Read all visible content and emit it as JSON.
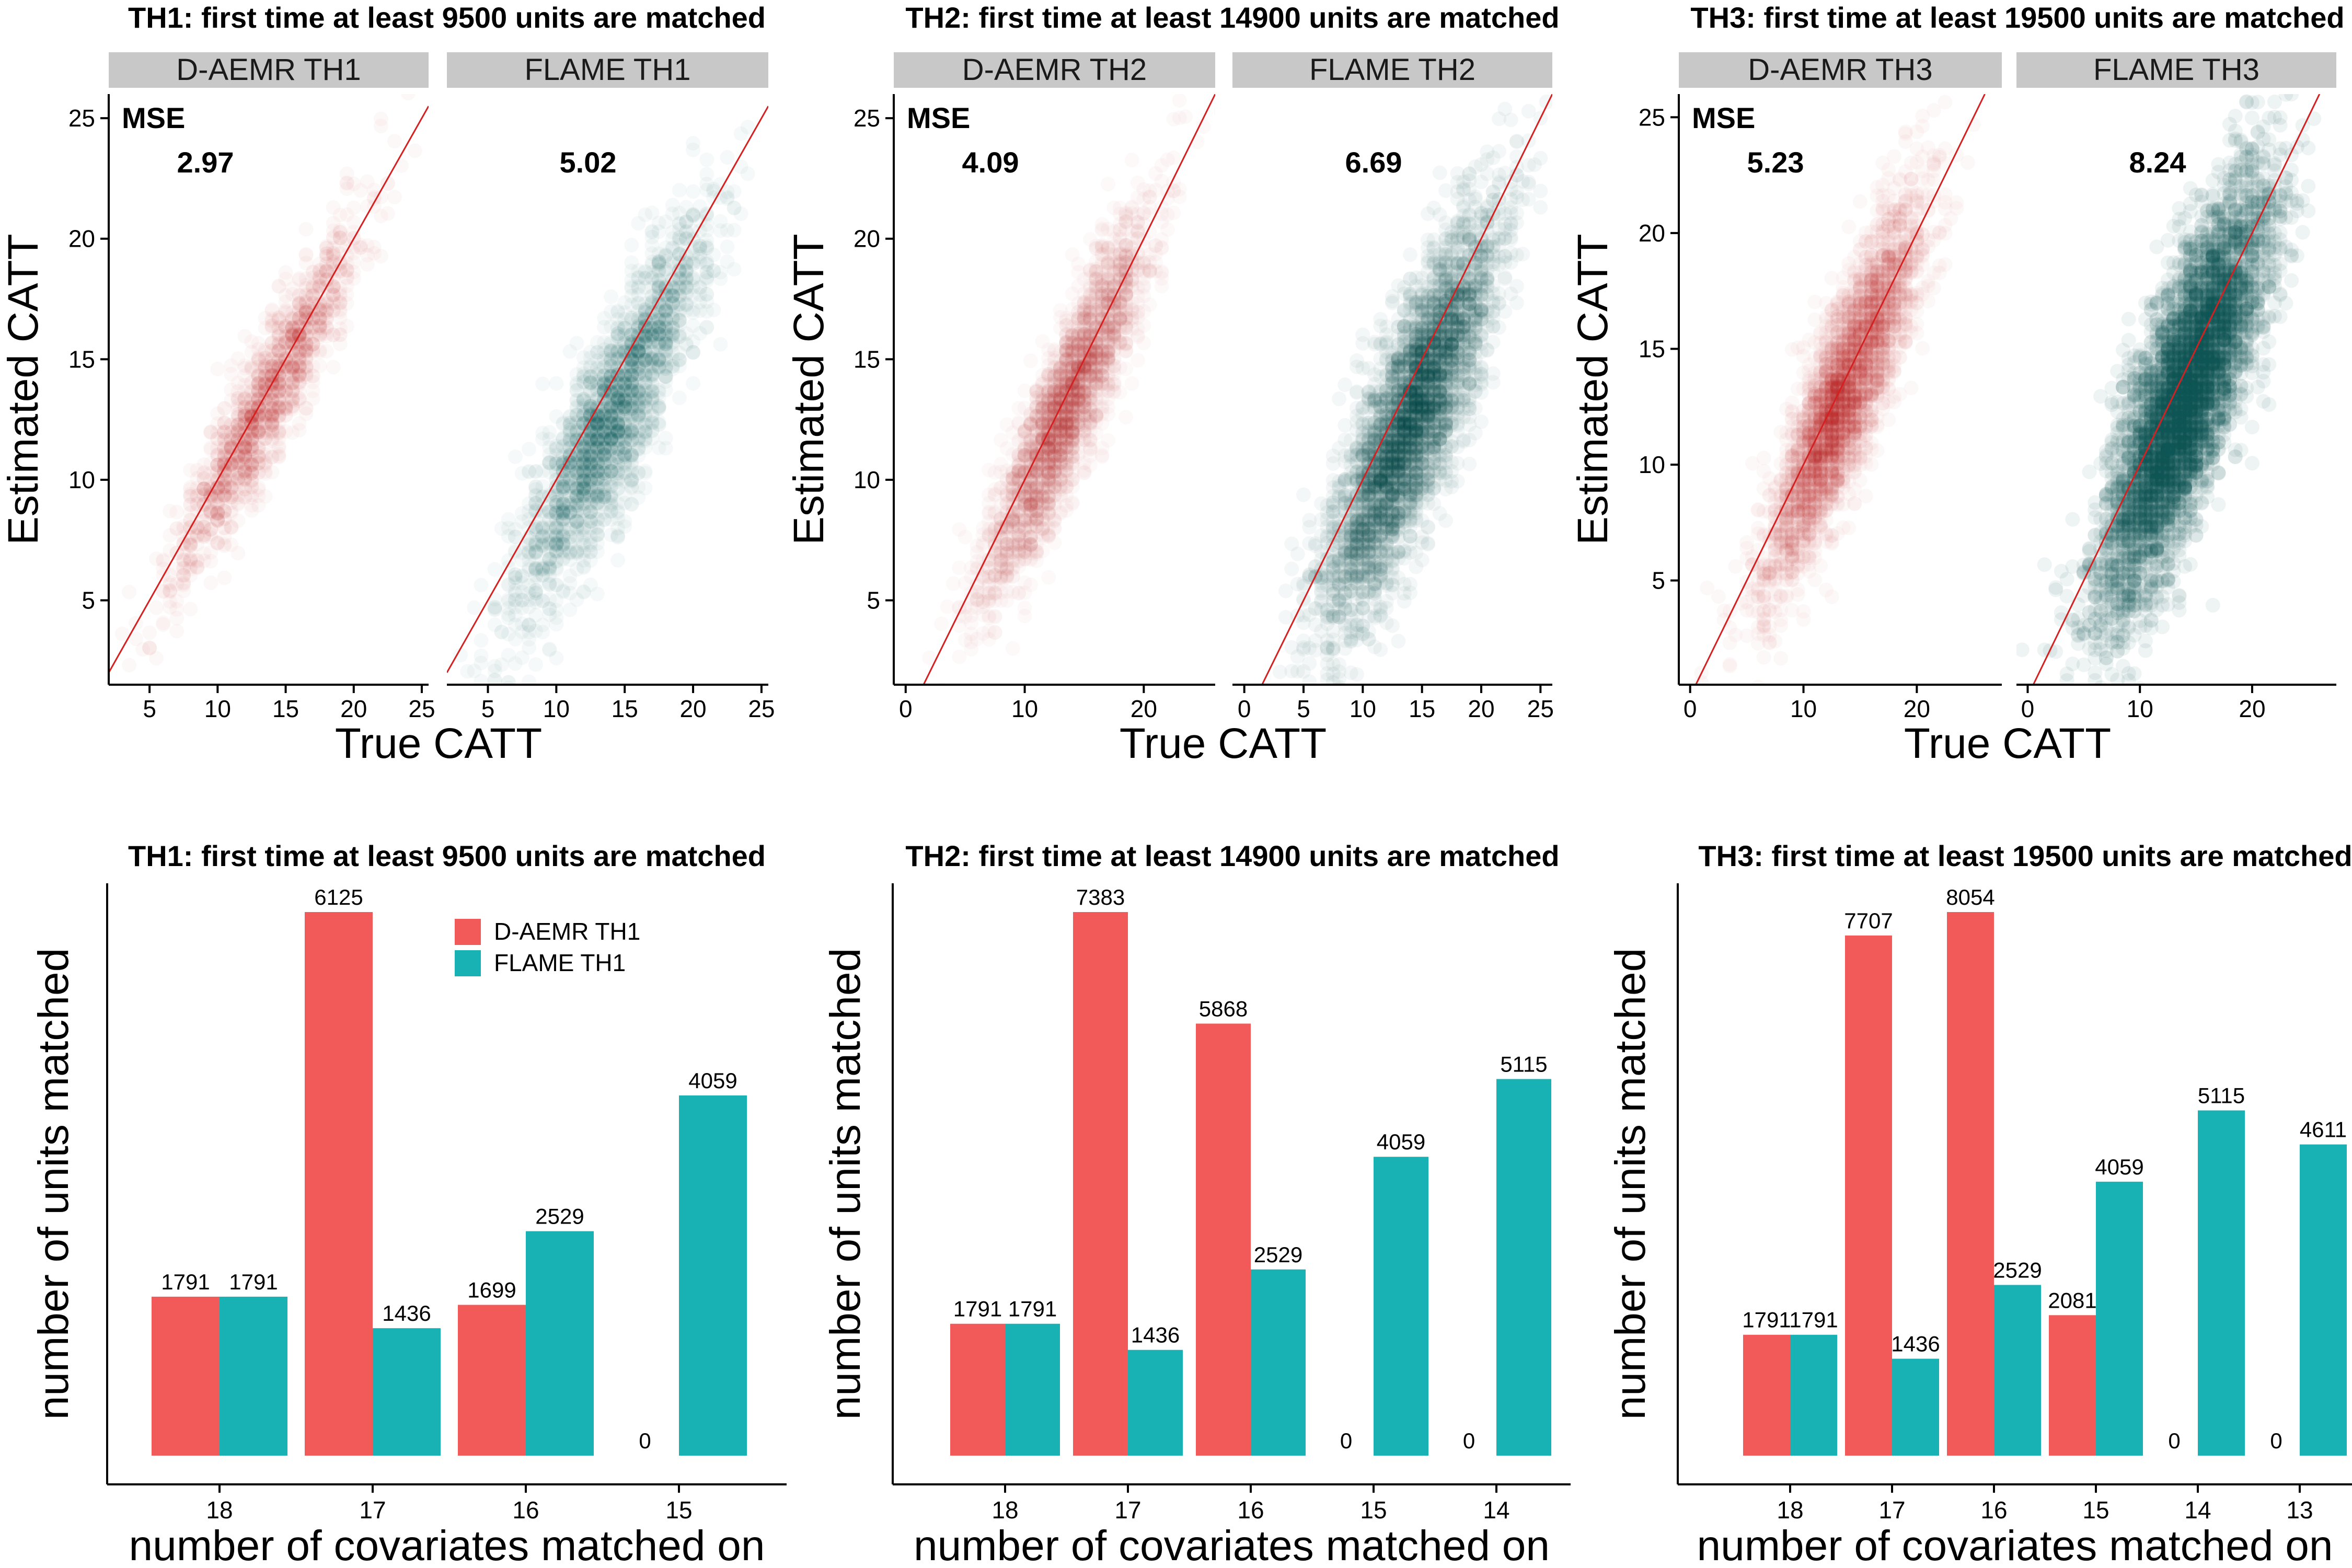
{
  "colors": {
    "daemr": "#F25A5A",
    "flame": "#18B2B5",
    "scatter_daemr": "#B0161C",
    "scatter_flame": "#0A4E4F",
    "identity_line": "#D42020",
    "strip_bg": "#C8C8C8",
    "axis": "#000000"
  },
  "labels": {
    "scatter_xlabel": "True CATT",
    "scatter_ylabel": "Estimated CATT",
    "mse_label": "MSE",
    "bar_xlabel": "number of covariates matched on",
    "bar_ylabel": "number of units matched"
  },
  "legend": {
    "placement": "top-right of first bar chart",
    "entries": [
      "D-AEMR TH1",
      "FLAME TH1"
    ]
  },
  "chart_data": [
    {
      "type": "scatter",
      "title": "TH1: first time at least 9500 units are matched",
      "xlabel": "True CATT",
      "ylabel": "Estimated CATT",
      "ylim": [
        1.5,
        26
      ],
      "yticks": [
        5,
        10,
        15,
        20,
        25
      ],
      "facets": [
        {
          "name": "D-AEMR TH1",
          "mse": "2.97",
          "method": "daemr",
          "xlim": [
            2,
            25.5
          ],
          "xticks": [
            5,
            10,
            15,
            20,
            25
          ],
          "cx": 13.5,
          "cy": 13.2,
          "sdx": 3.4,
          "sdy": 3.7,
          "rho": 0.93,
          "n": 1400,
          "alpha": 0.03
        },
        {
          "name": "FLAME TH1",
          "mse": "5.02",
          "method": "flame",
          "xlim": [
            2,
            25.5
          ],
          "xticks": [
            5,
            10,
            15,
            20,
            25
          ],
          "cx": 14.0,
          "cy": 12.5,
          "sdx": 3.4,
          "sdy": 3.9,
          "rho": 0.87,
          "n": 2200,
          "alpha": 0.035
        }
      ]
    },
    {
      "type": "scatter",
      "title": "TH2: first time at least 14900 units are matched",
      "xlabel": "True CATT",
      "ylabel": "Estimated CATT",
      "ylim": [
        1.5,
        26
      ],
      "yticks": [
        5,
        10,
        15,
        20,
        25
      ],
      "facets": [
        {
          "name": "D-AEMR TH2",
          "mse": "4.09",
          "method": "daemr",
          "xlim": [
            -1,
            26
          ],
          "xticks": [
            0,
            10,
            20
          ],
          "cx": 13.5,
          "cy": 13.0,
          "sdx": 3.4,
          "sdy": 3.9,
          "rho": 0.9,
          "n": 2400,
          "alpha": 0.028
        },
        {
          "name": "FLAME TH2",
          "mse": "6.69",
          "method": "flame",
          "xlim": [
            -1,
            26
          ],
          "xticks": [
            0,
            5,
            10,
            15,
            20,
            25
          ],
          "cx": 14.0,
          "cy": 12.5,
          "sdx": 3.6,
          "sdy": 4.2,
          "rho": 0.83,
          "n": 3600,
          "alpha": 0.045
        }
      ]
    },
    {
      "type": "scatter",
      "title": "TH3: first time at least 19500 units are matched",
      "xlabel": "True CATT",
      "ylabel": "Estimated CATT",
      "ylim": [
        0.5,
        26
      ],
      "yticks": [
        5,
        10,
        15,
        20,
        25
      ],
      "facets": [
        {
          "name": "D-AEMR TH3",
          "mse": "5.23",
          "method": "daemr",
          "xlim": [
            -1,
            27.5
          ],
          "xticks": [
            0,
            10,
            20
          ],
          "cx": 13.5,
          "cy": 13.0,
          "sdx": 3.5,
          "sdy": 4.2,
          "rho": 0.87,
          "n": 3000,
          "alpha": 0.03
        },
        {
          "name": "FLAME TH3",
          "mse": "8.24",
          "method": "flame",
          "xlim": [
            -1,
            27.5
          ],
          "xticks": [
            0,
            10,
            20
          ],
          "cx": 14.0,
          "cy": 13.0,
          "sdx": 3.7,
          "sdy": 4.6,
          "rho": 0.8,
          "n": 5000,
          "alpha": 0.07
        }
      ]
    },
    {
      "type": "bar",
      "title": "TH1: first time at least 9500 units are matched",
      "xlabel": "number of covariates matched on",
      "ylabel": "number of units matched",
      "categories": [
        "18",
        "17",
        "16",
        "15"
      ],
      "ylim": [
        0,
        6125
      ],
      "series": [
        {
          "name": "D-AEMR TH1",
          "values": [
            1791,
            6125,
            1699,
            0
          ]
        },
        {
          "name": "FLAME TH1",
          "values": [
            1791,
            1436,
            2529,
            4059
          ]
        }
      ],
      "legend": true
    },
    {
      "type": "bar",
      "title": "TH2: first time at least 14900 units are matched",
      "xlabel": "number of covariates matched on",
      "ylabel": "number of units matched",
      "categories": [
        "18",
        "17",
        "16",
        "15",
        "14"
      ],
      "ylim": [
        0,
        7383
      ],
      "series": [
        {
          "name": "D-AEMR TH2",
          "values": [
            1791,
            7383,
            5868,
            0,
            0
          ]
        },
        {
          "name": "FLAME TH2",
          "values": [
            1791,
            1436,
            2529,
            4059,
            5115
          ]
        }
      ],
      "legend": false
    },
    {
      "type": "bar",
      "title": "TH3: first time at least 19500 units are matched",
      "xlabel": "number of covariates matched on",
      "ylabel": "number of units matched",
      "categories": [
        "18",
        "17",
        "16",
        "15",
        "14",
        "13"
      ],
      "ylim": [
        0,
        8054
      ],
      "series": [
        {
          "name": "D-AEMR TH3",
          "values": [
            1791,
            7707,
            8054,
            2081,
            0,
            0
          ]
        },
        {
          "name": "FLAME TH3",
          "values": [
            1791,
            1436,
            2529,
            4059,
            5115,
            4611
          ]
        }
      ],
      "legend": false
    }
  ]
}
